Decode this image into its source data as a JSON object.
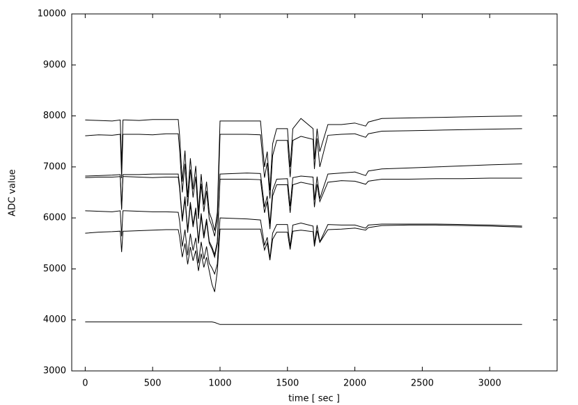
{
  "chart_data": {
    "type": "line",
    "xlabel": "time [ sec ]",
    "ylabel": "ADC value",
    "x": [
      0,
      100,
      200,
      260,
      270,
      280,
      300,
      400,
      500,
      600,
      690,
      700,
      720,
      740,
      760,
      780,
      800,
      820,
      840,
      860,
      880,
      900,
      920,
      940,
      960,
      980,
      990,
      1000,
      1100,
      1200,
      1300,
      1330,
      1350,
      1370,
      1390,
      1420,
      1500,
      1520,
      1540,
      1600,
      1690,
      1700,
      1720,
      1740,
      1800,
      1900,
      2000,
      2080,
      2100,
      2200,
      2400,
      2600,
      2800,
      3000,
      3240
    ],
    "series": [
      {
        "color": "#000000",
        "values": [
          7920,
          7910,
          7900,
          7920,
          7020,
          7920,
          7920,
          7910,
          7930,
          7930,
          7930,
          7620,
          6710,
          7320,
          6410,
          7170,
          6560,
          7020,
          6110,
          6860,
          6260,
          6710,
          6110,
          5960,
          5750,
          6110,
          7020,
          7900,
          7900,
          7900,
          7900,
          7000,
          7300,
          6540,
          7450,
          7750,
          7750,
          7000,
          7750,
          7950,
          7750,
          7150,
          7750,
          7300,
          7830,
          7830,
          7860,
          7800,
          7880,
          7950,
          7960,
          7970,
          7980,
          7990,
          8000
        ]
      },
      {
        "color": "#000000",
        "values": [
          7610,
          7630,
          7620,
          7640,
          6780,
          7640,
          7640,
          7640,
          7630,
          7650,
          7650,
          7340,
          6500,
          7060,
          6230,
          6950,
          6400,
          6810,
          5980,
          6670,
          6120,
          6530,
          5980,
          5840,
          5640,
          5980,
          6810,
          7640,
          7640,
          7640,
          7630,
          6790,
          7080,
          6380,
          7220,
          7520,
          7520,
          6800,
          7520,
          7600,
          7540,
          6960,
          7560,
          7000,
          7620,
          7640,
          7650,
          7580,
          7650,
          7700,
          7710,
          7720,
          7730,
          7740,
          7750
        ]
      },
      {
        "color": "#000000",
        "values": [
          6820,
          6830,
          6840,
          6850,
          6190,
          6850,
          6850,
          6850,
          6860,
          6860,
          6860,
          6640,
          5980,
          6420,
          5760,
          6310,
          5870,
          6200,
          5540,
          6090,
          5650,
          5980,
          5540,
          5430,
          5280,
          5540,
          6200,
          6860,
          6870,
          6880,
          6870,
          6210,
          6430,
          5880,
          6540,
          6760,
          6770,
          6230,
          6790,
          6820,
          6800,
          6350,
          6810,
          6380,
          6860,
          6880,
          6900,
          6830,
          6920,
          6960,
          6980,
          7000,
          7020,
          7040,
          7060
        ]
      },
      {
        "color": "#000000",
        "values": [
          6790,
          6800,
          6800,
          6810,
          6160,
          6810,
          6810,
          6800,
          6790,
          6800,
          6800,
          6580,
          5930,
          6370,
          5710,
          6260,
          5820,
          6150,
          5500,
          6040,
          5600,
          5930,
          5500,
          5390,
          5230,
          5500,
          6150,
          6760,
          6760,
          6760,
          6750,
          6100,
          6320,
          5780,
          6430,
          6650,
          6650,
          6100,
          6650,
          6700,
          6650,
          6210,
          6660,
          6320,
          6700,
          6730,
          6720,
          6660,
          6720,
          6760,
          6760,
          6770,
          6770,
          6780,
          6780
        ]
      },
      {
        "color": "#000000",
        "values": [
          6140,
          6130,
          6120,
          6140,
          5640,
          6140,
          6140,
          6130,
          6120,
          6120,
          6110,
          5940,
          5440,
          5770,
          5270,
          5690,
          5360,
          5610,
          5110,
          5530,
          5190,
          5440,
          5110,
          5020,
          4900,
          5100,
          5600,
          6000,
          5990,
          5980,
          5960,
          5460,
          5620,
          5200,
          5700,
          5870,
          5870,
          5440,
          5860,
          5900,
          5840,
          5490,
          5860,
          5530,
          5870,
          5860,
          5860,
          5800,
          5860,
          5880,
          5880,
          5880,
          5870,
          5860,
          5840
        ]
      },
      {
        "color": "#000000",
        "values": [
          5700,
          5720,
          5730,
          5740,
          5330,
          5740,
          5740,
          5750,
          5760,
          5770,
          5770,
          5630,
          5230,
          5500,
          5090,
          5430,
          5160,
          5360,
          4960,
          5300,
          5030,
          5230,
          4960,
          4700,
          4550,
          4960,
          5370,
          5780,
          5780,
          5780,
          5780,
          5370,
          5510,
          5170,
          5580,
          5720,
          5720,
          5380,
          5740,
          5760,
          5730,
          5440,
          5750,
          5520,
          5770,
          5780,
          5800,
          5760,
          5810,
          5850,
          5860,
          5860,
          5850,
          5840,
          5820
        ]
      },
      {
        "color": "#000000",
        "values": [
          3960,
          3960,
          3960,
          3960,
          3960,
          3960,
          3960,
          3960,
          3960,
          3960,
          3960,
          3960,
          3960,
          3960,
          3960,
          3960,
          3960,
          3960,
          3960,
          3960,
          3960,
          3960,
          3960,
          3960,
          3950,
          3930,
          3920,
          3910,
          3910,
          3910,
          3910,
          3910,
          3910,
          3910,
          3910,
          3910,
          3910,
          3910,
          3910,
          3910,
          3910,
          3910,
          3910,
          3910,
          3910,
          3910,
          3910,
          3910,
          3910,
          3910,
          3910,
          3910,
          3910,
          3910,
          3910
        ]
      }
    ],
    "xlim": [
      -100,
      3500
    ],
    "ylim": [
      3000,
      10000
    ],
    "xticks": [
      0,
      500,
      1000,
      1500,
      2000,
      2500,
      3000
    ],
    "yticks": [
      3000,
      4000,
      5000,
      6000,
      7000,
      8000,
      9000,
      10000
    ],
    "grid": false
  }
}
